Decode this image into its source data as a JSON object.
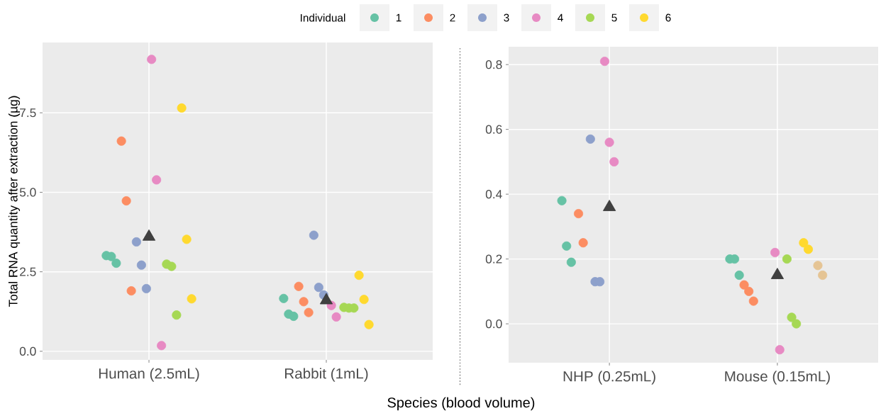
{
  "chart_data": [
    {
      "type": "scatter",
      "xlabel": "Species (blood volume)",
      "ylabel": "Total RNA quantity after extraction (µg)",
      "legend_title": "Individual",
      "legend": "top",
      "grid": true,
      "marker": "circle",
      "categories": [
        "Human (2.5mL)",
        "Rabbit (1mL)"
      ],
      "ylim": [
        -0.27,
        9.71
      ],
      "yticks": [
        {
          "value": 0,
          "label": "0.0"
        },
        {
          "value": 2.5,
          "label": "2.5"
        },
        {
          "value": 5,
          "label": "5.0"
        },
        {
          "value": 7.5,
          "label": "7.5"
        }
      ],
      "series": [
        {
          "name": "1",
          "color": "#66c2a5",
          "x": [
            "Human (2.5mL)",
            "Human (2.5mL)",
            "Human (2.5mL)",
            "Rabbit (1mL)",
            "Rabbit (1mL)",
            "Rabbit (1mL)"
          ],
          "values": [
            3.01,
            2.98,
            2.77,
            1.66,
            1.17,
            1.1
          ]
        },
        {
          "name": "2",
          "color": "#fc8d62",
          "x": [
            "Human (2.5mL)",
            "Human (2.5mL)",
            "Human (2.5mL)",
            "Rabbit (1mL)",
            "Rabbit (1mL)",
            "Rabbit (1mL)"
          ],
          "values": [
            6.61,
            4.73,
            1.9,
            2.04,
            1.56,
            1.22
          ]
        },
        {
          "name": "3",
          "color": "#8da0cb",
          "x": [
            "Human (2.5mL)",
            "Human (2.5mL)",
            "Human (2.5mL)",
            "Rabbit (1mL)",
            "Rabbit (1mL)",
            "Rabbit (1mL)"
          ],
          "values": [
            3.44,
            2.71,
            1.97,
            3.65,
            2.01,
            1.77
          ]
        },
        {
          "name": "4",
          "color": "#e78ac3",
          "x": [
            "Human (2.5mL)",
            "Human (2.5mL)",
            "Human (2.5mL)",
            "Rabbit (1mL)",
            "Rabbit (1mL)",
            "Rabbit (1mL)"
          ],
          "values": [
            9.18,
            5.39,
            0.18,
            null,
            1.44,
            1.08
          ]
        },
        {
          "name": "5",
          "color": "#a6d854",
          "x": [
            "Human (2.5mL)",
            "Human (2.5mL)",
            "Human (2.5mL)",
            "Rabbit (1mL)",
            "Rabbit (1mL)",
            "Rabbit (1mL)"
          ],
          "values": [
            2.74,
            2.67,
            1.14,
            1.38,
            1.36,
            1.36
          ]
        },
        {
          "name": "6",
          "color": "#ffd92f",
          "x": [
            "Human (2.5mL)",
            "Human (2.5mL)",
            "Human (2.5mL)",
            "Rabbit (1mL)",
            "Rabbit (1mL)",
            "Rabbit (1mL)"
          ],
          "values": [
            7.65,
            3.52,
            1.65,
            2.39,
            1.63,
            0.84
          ]
        },
        {
          "color": "#404040",
          "marker": "triangle",
          "x": [
            "Human (2.5mL)",
            "Rabbit (1mL)"
          ],
          "values": [
            3.6,
            1.6
          ]
        }
      ]
    },
    {
      "type": "scatter",
      "grid": true,
      "marker": "circle",
      "categories": [
        "NHP (0.25mL)",
        "Mouse (0.15mL)"
      ],
      "ylim": [
        -0.12,
        0.855
      ],
      "yticks": [
        {
          "value": 0,
          "label": "0.0"
        },
        {
          "value": 0.2,
          "label": "0.2"
        },
        {
          "value": 0.4,
          "label": "0.4"
        },
        {
          "value": 0.6,
          "label": "0.6"
        },
        {
          "value": 0.8,
          "label": "0.8"
        }
      ],
      "series": [
        {
          "color": "#66c2a5",
          "x": [
            "NHP (0.25mL)",
            "NHP (0.25mL)",
            "NHP (0.25mL)",
            "Mouse (0.15mL)",
            "Mouse (0.15mL)",
            "Mouse (0.15mL)"
          ],
          "values": [
            0.38,
            0.24,
            0.19,
            0.2,
            0.2,
            0.15
          ]
        },
        {
          "color": "#fc8d62",
          "x": [
            "NHP (0.25mL)",
            "NHP (0.25mL)",
            "Mouse (0.15mL)",
            "Mouse (0.15mL)",
            "Mouse (0.15mL)"
          ],
          "values": [
            0.34,
            0.25,
            0.12,
            0.1,
            0.07
          ]
        },
        {
          "color": "#8da0cb",
          "x": [
            "NHP (0.25mL)",
            "NHP (0.25mL)",
            "NHP (0.25mL)"
          ],
          "values": [
            0.57,
            0.13,
            0.13
          ]
        },
        {
          "color": "#e78ac3",
          "x": [
            "NHP (0.25mL)",
            "NHP (0.25mL)",
            "NHP (0.25mL)",
            "Mouse (0.15mL)",
            "Mouse (0.15mL)"
          ],
          "values": [
            0.81,
            0.56,
            0.5,
            0.22,
            -0.08
          ]
        },
        {
          "color": "#a6d854",
          "x": [
            "Mouse (0.15mL)",
            "Mouse (0.15mL)",
            "Mouse (0.15mL)"
          ],
          "values": [
            0.2,
            0.02,
            0.0
          ]
        },
        {
          "color": "#ffd92f",
          "x": [
            "Mouse (0.15mL)",
            "Mouse (0.15mL)"
          ],
          "values": [
            0.25,
            0.23
          ]
        },
        {
          "color": "#e5c494",
          "x": [
            "Mouse (0.15mL)",
            "Mouse (0.15mL)"
          ],
          "values": [
            0.18,
            0.15
          ]
        },
        {
          "color": "#404040",
          "marker": "triangle",
          "x": [
            "NHP (0.25mL)",
            "Mouse (0.15mL)"
          ],
          "values": [
            0.36,
            0.15
          ]
        }
      ]
    }
  ]
}
